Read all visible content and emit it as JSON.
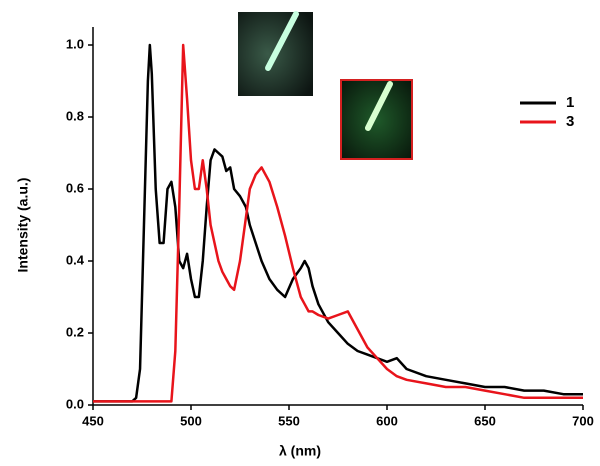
{
  "chart_data": {
    "type": "line",
    "x_label": "λ (nm)",
    "y_label": "Intensity (a.u.)",
    "xlim": [
      450,
      700
    ],
    "ylim": [
      0,
      1.05
    ],
    "xticks": [
      450,
      500,
      550,
      600,
      650,
      700
    ],
    "yticks": [
      {
        "value": 0,
        "label": "0.0"
      },
      0.2,
      0.4,
      0.6,
      0.8,
      {
        "value": 1,
        "label": "1.0"
      }
    ],
    "legend": "upper right",
    "x": [
      450,
      460,
      470,
      472,
      474,
      476,
      478,
      479,
      480,
      482,
      484,
      486,
      488,
      490,
      492,
      494,
      496,
      498,
      500,
      502,
      504,
      506,
      508,
      510,
      512,
      514,
      516,
      518,
      520,
      522,
      525,
      528,
      530,
      533,
      536,
      540,
      544,
      548,
      552,
      556,
      558,
      560,
      562,
      565,
      570,
      575,
      580,
      585,
      590,
      595,
      600,
      605,
      610,
      620,
      630,
      640,
      650,
      660,
      670,
      680,
      690,
      700
    ],
    "series": [
      {
        "name": "1",
        "color": "#000000",
        "values": [
          0.01,
          0.01,
          0.01,
          0.02,
          0.1,
          0.5,
          0.9,
          1.0,
          0.92,
          0.6,
          0.45,
          0.45,
          0.6,
          0.62,
          0.55,
          0.4,
          0.38,
          0.42,
          0.35,
          0.3,
          0.3,
          0.4,
          0.55,
          0.68,
          0.71,
          0.7,
          0.69,
          0.65,
          0.66,
          0.6,
          0.58,
          0.55,
          0.5,
          0.45,
          0.4,
          0.35,
          0.32,
          0.3,
          0.35,
          0.38,
          0.4,
          0.38,
          0.33,
          0.28,
          0.23,
          0.2,
          0.17,
          0.15,
          0.14,
          0.13,
          0.12,
          0.13,
          0.1,
          0.08,
          0.07,
          0.06,
          0.05,
          0.05,
          0.04,
          0.04,
          0.03,
          0.03
        ]
      },
      {
        "name": "3",
        "color": "#e8141b",
        "values": [
          0.01,
          0.01,
          0.01,
          0.01,
          0.01,
          0.01,
          0.01,
          0.01,
          0.01,
          0.01,
          0.01,
          0.01,
          0.01,
          0.01,
          0.15,
          0.55,
          1.0,
          0.85,
          0.68,
          0.6,
          0.6,
          0.68,
          0.6,
          0.5,
          0.45,
          0.4,
          0.37,
          0.35,
          0.33,
          0.32,
          0.4,
          0.52,
          0.6,
          0.64,
          0.66,
          0.62,
          0.55,
          0.47,
          0.38,
          0.3,
          0.28,
          0.26,
          0.26,
          0.25,
          0.24,
          0.25,
          0.26,
          0.21,
          0.16,
          0.13,
          0.1,
          0.08,
          0.07,
          0.06,
          0.05,
          0.05,
          0.04,
          0.03,
          0.02,
          0.02,
          0.02,
          0.02
        ]
      }
    ]
  }
}
